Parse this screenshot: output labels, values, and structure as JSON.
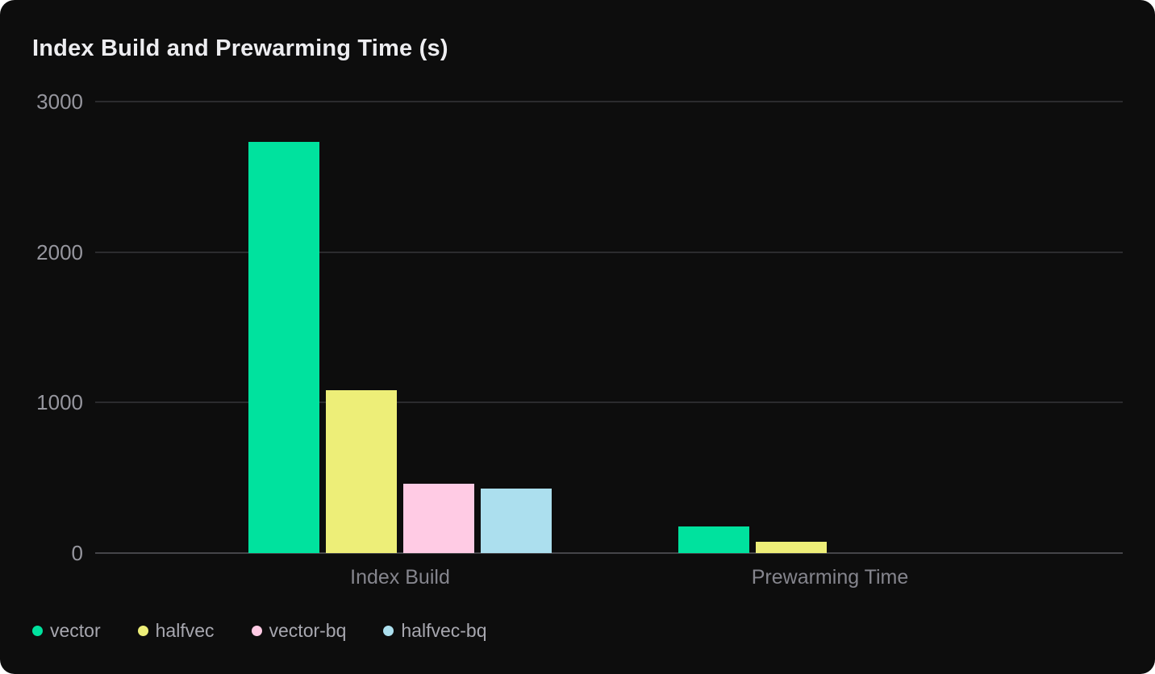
{
  "chart_data": {
    "type": "bar",
    "title": "Index Build and Prewarming Time (s)",
    "categories": [
      "Index Build",
      "Prewarming Time"
    ],
    "series": [
      {
        "name": "vector",
        "color": "#00e29e",
        "values": [
          2730,
          175
        ]
      },
      {
        "name": "halfvec",
        "color": "#edee78",
        "values": [
          1080,
          75
        ]
      },
      {
        "name": "vector-bq",
        "color": "#ffcbe4",
        "values": [
          460,
          0
        ]
      },
      {
        "name": "halfvec-bq",
        "color": "#acdfee",
        "values": [
          430,
          0
        ]
      }
    ],
    "xlabel": "",
    "ylabel": "",
    "ylim": [
      0,
      3000
    ],
    "yticks": [
      0,
      1000,
      2000,
      3000
    ],
    "grid": true,
    "legend_position": "bottom-left"
  },
  "ui_colors": {
    "card_background": "#0d0d0d",
    "page_background": "#ffffff",
    "title_text": "#ededf0",
    "axis_text": "#96969e",
    "category_text": "#85858d",
    "legend_text": "#a7a7af",
    "gridline": "#2b2b2e",
    "zero_line": "#454549"
  }
}
